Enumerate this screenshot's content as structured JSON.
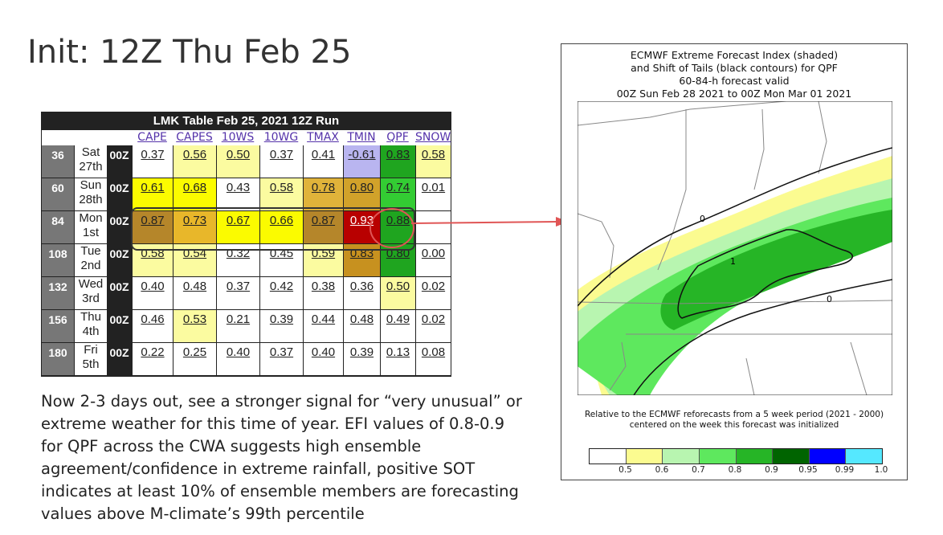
{
  "slide_title": "Init: 12Z Thu Feb 25",
  "lmk_table": {
    "header": "LMK Table   Feb 25, 2021 12Z Run",
    "columns": [
      "CAPE",
      "CAPES",
      "10WS",
      "10WG",
      "TMAX",
      "TMIN",
      "QPF",
      "SNOW"
    ],
    "rows": [
      {
        "hour": "36",
        "day1": "Sat",
        "day2": "27th",
        "run": "00Z",
        "values": [
          "0.37",
          "0.56",
          "0.50",
          "0.37",
          "0.41",
          "-0.61",
          "0.83",
          "0.58"
        ]
      },
      {
        "hour": "60",
        "day1": "Sun",
        "day2": "28th",
        "run": "00Z",
        "values": [
          "0.61",
          "0.68",
          "0.43",
          "0.58",
          "0.78",
          "0.80",
          "0.74",
          "0.01"
        ]
      },
      {
        "hour": "84",
        "day1": "Mon",
        "day2": "1st",
        "run": "00Z",
        "values": [
          "0.87",
          "0.73",
          "0.67",
          "0.66",
          "0.87",
          "0.93",
          "0.88",
          ""
        ]
      },
      {
        "hour": "108",
        "day1": "Tue",
        "day2": "2nd",
        "run": "00Z",
        "values": [
          "0.58",
          "0.54",
          "0.32",
          "0.45",
          "0.59",
          "0.83",
          "0.80",
          "0.00"
        ]
      },
      {
        "hour": "132",
        "day1": "Wed",
        "day2": "3rd",
        "run": "00Z",
        "values": [
          "0.40",
          "0.48",
          "0.37",
          "0.42",
          "0.38",
          "0.36",
          "0.50",
          "0.02"
        ]
      },
      {
        "hour": "156",
        "day1": "Thu",
        "day2": "4th",
        "run": "00Z",
        "values": [
          "0.46",
          "0.53",
          "0.21",
          "0.39",
          "0.44",
          "0.48",
          "0.49",
          "0.02"
        ]
      },
      {
        "hour": "180",
        "day1": "Fri",
        "day2": "5th",
        "run": "00Z",
        "values": [
          "0.22",
          "0.25",
          "0.40",
          "0.37",
          "0.40",
          "0.39",
          "0.13",
          "0.08"
        ]
      }
    ],
    "cell_colors": [
      [
        "#ffffff",
        "#fbfba0",
        "#fbfba0",
        "#ffffff",
        "#ffffff",
        "#b9b5f0",
        "#1fa51f",
        "#fbfba0"
      ],
      [
        "#fbfb00",
        "#fbfb00",
        "#ffffff",
        "#fbfba0",
        "#e0b33a",
        "#d1a22a",
        "#33cc33",
        "#ffffff"
      ],
      [
        "#b5862a",
        "#e8b72a",
        "#fbfb00",
        "#fbfb00",
        "#b5862a",
        "#b80000",
        "#1fa51f",
        "#ffffff"
      ],
      [
        "#fbfba0",
        "#fbfba0",
        "#ffffff",
        "#ffffff",
        "#fbfba0",
        "#c7911f",
        "#1fa51f",
        "#ffffff"
      ],
      [
        "#ffffff",
        "#ffffff",
        "#ffffff",
        "#ffffff",
        "#ffffff",
        "#ffffff",
        "#fbfba0",
        "#ffffff"
      ],
      [
        "#ffffff",
        "#fbfba0",
        "#ffffff",
        "#ffffff",
        "#ffffff",
        "#ffffff",
        "#ffffff",
        "#ffffff"
      ],
      [
        "#ffffff",
        "#ffffff",
        "#ffffff",
        "#ffffff",
        "#ffffff",
        "#ffffff",
        "#ffffff",
        "#ffffff"
      ]
    ]
  },
  "description": "Now 2-3 days out, see a stronger signal for “very unusual” or extreme weather for this time of year. EFI values of 0.8-0.9 for QPF across the CWA suggests high ensemble agreement/confidence in extreme rainfall, positive SOT indicates at least 10% of ensemble members are forecasting values above M-climate’s 99th percentile",
  "map": {
    "title_lines": [
      "ECMWF Extreme Forecast Index (shaded)",
      "and Shift of Tails (black contours) for QPF",
      "60-84-h forecast valid",
      "00Z Sun Feb 28 2021  to  00Z Mon Mar 01 2021"
    ],
    "footer_lines": [
      "Relative to the ECMWF reforecasts from a 5 week period (2021 - 2000)",
      "centered on the week this forecast was initialized"
    ],
    "contour_labels": [
      "0",
      "1",
      "0"
    ],
    "legend_colors": [
      "#ffffff",
      "#fbfb90",
      "#b8f5b0",
      "#5ee85e",
      "#26b526",
      "#006400",
      "#0000ff",
      "#55e8ff"
    ],
    "legend_labels": [
      "0.5",
      "0.6",
      "0.7",
      "0.8",
      "0.9",
      "0.95",
      "0.99",
      "1.0"
    ]
  }
}
